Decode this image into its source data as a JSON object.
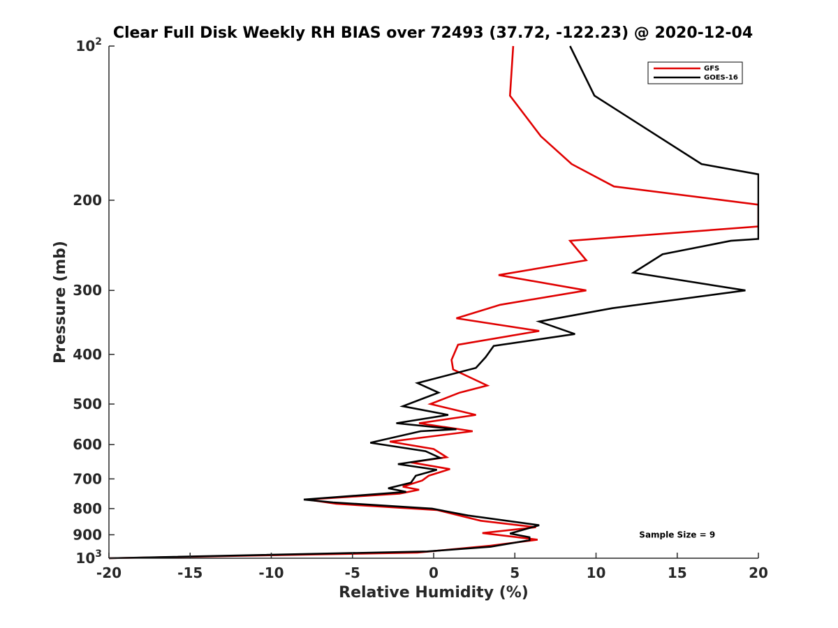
{
  "chart_data": {
    "type": "line",
    "title": "Clear Full Disk Weekly RH BIAS over 72493 (37.72, -122.23) @ 2020-12-04",
    "xlabel": "Relative Humidity (%)",
    "ylabel": "Pressure (mb)",
    "xlim": [
      -20,
      20
    ],
    "ylim": [
      100,
      1000
    ],
    "y_scale": "log",
    "y_reversed": true,
    "x_ticks": [
      "-20",
      "-15",
      "-10",
      "-5",
      "0",
      "5",
      "10",
      "15",
      "20"
    ],
    "y_ticks": [
      {
        "value": 100,
        "base": "10",
        "sup": "2"
      },
      {
        "value": 200,
        "label": "200"
      },
      {
        "value": 300,
        "label": "300"
      },
      {
        "value": 400,
        "label": "400"
      },
      {
        "value": 500,
        "label": "500"
      },
      {
        "value": 600,
        "label": "600"
      },
      {
        "value": 700,
        "label": "700"
      },
      {
        "value": 800,
        "label": "800"
      },
      {
        "value": 900,
        "label": "900"
      },
      {
        "value": 1000,
        "base": "10",
        "sup": "3"
      }
    ],
    "legend_position": "top-right",
    "series": [
      {
        "name": "GFS",
        "color": "#e00000",
        "points": [
          [
            4.9,
            100
          ],
          [
            4.7,
            125
          ],
          [
            6.6,
            150
          ],
          [
            8.5,
            170
          ],
          [
            11.1,
            188
          ],
          [
            20.0,
            204
          ],
          [
            20.0,
            225
          ],
          [
            8.4,
            240
          ],
          [
            9.4,
            262
          ],
          [
            4.0,
            280
          ],
          [
            9.4,
            300
          ],
          [
            4.1,
            320
          ],
          [
            1.4,
            340
          ],
          [
            6.5,
            360
          ],
          [
            1.5,
            383
          ],
          [
            1.1,
            410
          ],
          [
            1.2,
            428
          ],
          [
            3.3,
            460
          ],
          [
            1.6,
            475
          ],
          [
            -0.2,
            500
          ],
          [
            2.6,
            525
          ],
          [
            -0.9,
            545
          ],
          [
            2.4,
            565
          ],
          [
            -2.7,
            592
          ],
          [
            0.0,
            612
          ],
          [
            0.8,
            635
          ],
          [
            -1.4,
            650
          ],
          [
            1.0,
            670
          ],
          [
            -0.3,
            690
          ],
          [
            -0.7,
            705
          ],
          [
            -1.9,
            725
          ],
          [
            -0.9,
            735
          ],
          [
            -2.1,
            748
          ],
          [
            -7.8,
            768
          ],
          [
            -6.0,
            783
          ],
          [
            0.2,
            805
          ],
          [
            2.9,
            845
          ],
          [
            6.3,
            870
          ],
          [
            3.0,
            893
          ],
          [
            6.4,
            920
          ],
          [
            3.5,
            945
          ],
          [
            -1.0,
            975
          ],
          [
            -20.0,
            1000
          ]
        ]
      },
      {
        "name": "GOES-16",
        "color": "#000000",
        "points": [
          [
            8.4,
            100
          ],
          [
            9.9,
            125
          ],
          [
            16.5,
            170
          ],
          [
            20.0,
            178
          ],
          [
            20.0,
            238
          ],
          [
            18.3,
            240
          ],
          [
            14.1,
            255
          ],
          [
            12.3,
            277
          ],
          [
            19.2,
            300
          ],
          [
            11.0,
            325
          ],
          [
            6.5,
            345
          ],
          [
            8.7,
            365
          ],
          [
            3.7,
            385
          ],
          [
            3.2,
            405
          ],
          [
            2.6,
            425
          ],
          [
            -1.0,
            455
          ],
          [
            0.3,
            475
          ],
          [
            -0.6,
            487
          ],
          [
            -1.9,
            505
          ],
          [
            0.9,
            525
          ],
          [
            -2.3,
            545
          ],
          [
            1.4,
            560
          ],
          [
            -0.8,
            565
          ],
          [
            -3.9,
            595
          ],
          [
            -0.5,
            618
          ],
          [
            0.4,
            637
          ],
          [
            -2.2,
            655
          ],
          [
            0.2,
            672
          ],
          [
            -1.1,
            690
          ],
          [
            -1.4,
            712
          ],
          [
            -2.8,
            730
          ],
          [
            -1.7,
            742
          ],
          [
            -8.0,
            768
          ],
          [
            -6.2,
            778
          ],
          [
            -0.1,
            800
          ],
          [
            2.1,
            825
          ],
          [
            6.5,
            862
          ],
          [
            4.7,
            895
          ],
          [
            5.9,
            910
          ],
          [
            5.9,
            922
          ],
          [
            3.5,
            950
          ],
          [
            -0.4,
            970
          ],
          [
            -20.0,
            1000
          ]
        ]
      }
    ],
    "annotations": [
      {
        "text": "Sample Size = 9",
        "x": 15.0,
        "y": 900
      }
    ]
  }
}
